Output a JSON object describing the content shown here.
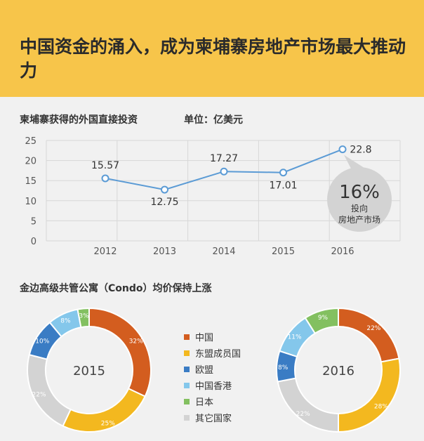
{
  "header": {
    "title": "中国资金的涌入，成为柬埔寨房地产市场最大推动力"
  },
  "fdi_chart": {
    "title": "柬埔寨获得的外国直接投资",
    "unit": "单位：亿美元"
  },
  "callout": {
    "value": "16%",
    "line1": "投向",
    "line2": "房地产市场"
  },
  "condo": {
    "title": "金边高级共管公寓（Condo）均价保持上涨"
  },
  "colors": {
    "banner": "#f7c54a",
    "line": "#5b9bd5"
  },
  "chart_data": [
    {
      "type": "line",
      "title": "柬埔寨获得的外国直接投资",
      "x": [
        "2012",
        "2013",
        "2014",
        "2015",
        "2016"
      ],
      "series": [
        {
          "values": [
            15.57,
            12.75,
            17.27,
            17.01,
            22.8
          ],
          "labels": [
            "15.57",
            "12.75",
            "17.27",
            "17.01",
            "22.8"
          ]
        }
      ],
      "ylim": [
        0,
        25
      ],
      "yticks": [
        "0",
        "5",
        "10",
        "15",
        "20",
        "25"
      ],
      "grid": true
    },
    {
      "type": "pie",
      "center_label": "2015",
      "slices": [
        {
          "name": "中国",
          "value": 32,
          "label": "32%",
          "color": "#d35d1f"
        },
        {
          "name": "东盟成员国",
          "value": 25,
          "label": "25%",
          "color": "#f3b81f"
        },
        {
          "name": "其它国家",
          "value": 22,
          "label": "22%",
          "color": "#d3d3d3"
        },
        {
          "name": "欧盟",
          "value": 10,
          "label": "10%",
          "color": "#3a7cc4"
        },
        {
          "name": "中国香港",
          "value": 8,
          "label": "8%",
          "color": "#84c7eb"
        },
        {
          "name": "日本",
          "value": 3,
          "label": "3%",
          "color": "#83c060"
        }
      ]
    },
    {
      "type": "pie",
      "center_label": "2016",
      "slices": [
        {
          "name": "中国",
          "value": 22,
          "label": "22%",
          "color": "#d35d1f"
        },
        {
          "name": "东盟成员国",
          "value": 28,
          "label": "28%",
          "color": "#f3b81f"
        },
        {
          "name": "其它国家",
          "value": 22,
          "label": "22%",
          "color": "#d3d3d3"
        },
        {
          "name": "欧盟",
          "value": 8,
          "label": "8%",
          "color": "#3a7cc4"
        },
        {
          "name": "中国香港",
          "value": 11,
          "label": "11%",
          "color": "#84c7eb"
        },
        {
          "name": "日本",
          "value": 9,
          "label": "9%",
          "color": "#83c060"
        }
      ]
    }
  ],
  "legend": [
    {
      "label": "中国",
      "color": "#d35d1f"
    },
    {
      "label": "东盟成员国",
      "color": "#f3b81f"
    },
    {
      "label": "欧盟",
      "color": "#3a7cc4"
    },
    {
      "label": "中国香港",
      "color": "#84c7eb"
    },
    {
      "label": "日本",
      "color": "#83c060"
    },
    {
      "label": "其它国家",
      "color": "#d3d3d3"
    }
  ]
}
